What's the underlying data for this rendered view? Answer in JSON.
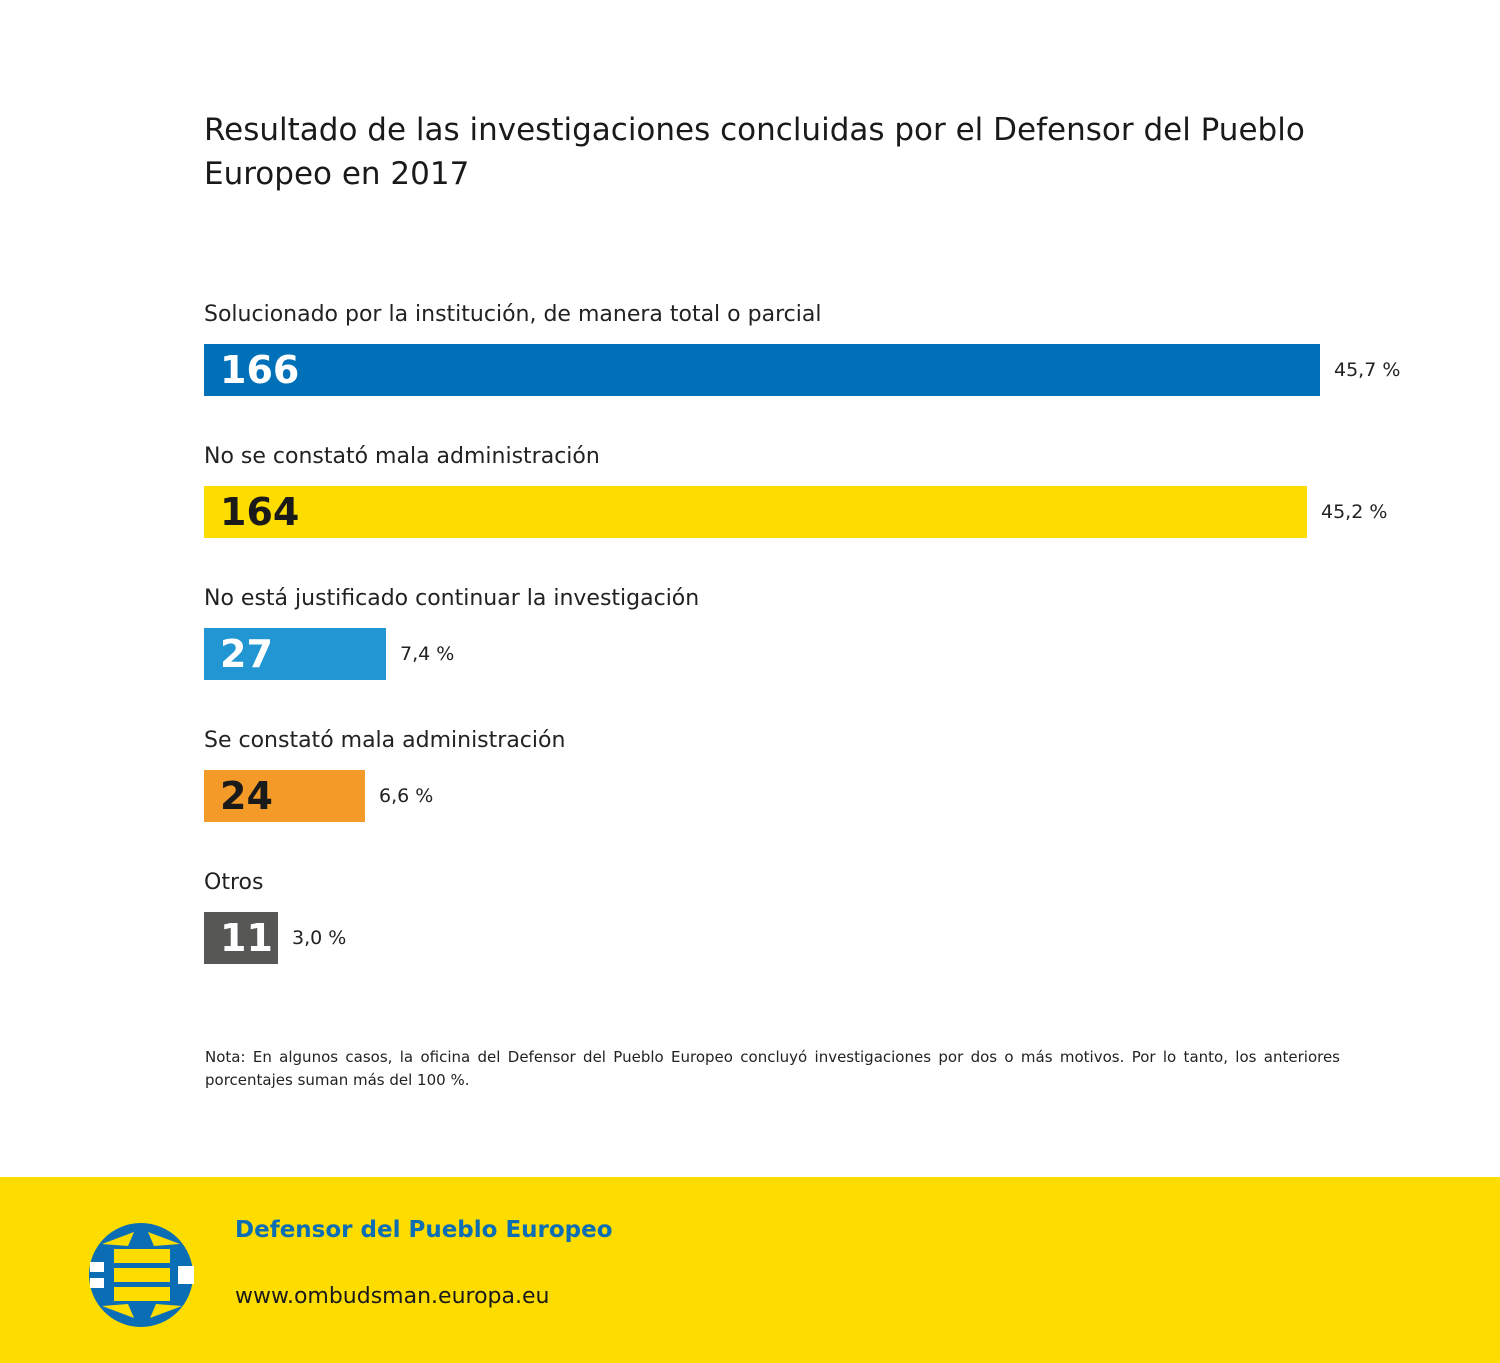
{
  "chart_data": {
    "type": "bar",
    "orientation": "horizontal",
    "title": "Resultado de las investigaciones concluidas por el Defensor del Pueblo Europeo en 2017",
    "categories": [
      "Solucionado por la institución, de manera total o parcial",
      "No se constató mala administración",
      "No está justificado continuar la investigación",
      "Se constató mala administración",
      "Otros"
    ],
    "values": [
      166,
      164,
      27,
      24,
      11
    ],
    "value_labels": [
      "166",
      "164",
      "27",
      "24",
      "11"
    ],
    "percent_labels": [
      "45,7 %",
      "45,2 %",
      "7,4 %",
      "6,6 %",
      "3,0 %"
    ],
    "colors": [
      "#0070b8",
      "#fddc00",
      "#2196d3",
      "#f39a29",
      "#575756"
    ],
    "value_text_colors": [
      "#ffffff",
      "#1a1a1a",
      "#ffffff",
      "#1a1a1a",
      "#ffffff"
    ],
    "xlim": [
      0,
      166
    ],
    "xlabel": "",
    "ylabel": ""
  },
  "note": "Nota: En algunos casos, la oficina del Defensor del Pueblo Europeo concluyó investigaciones por dos o más motivos. Por lo tanto, los anteriores porcentajes suman más del 100 %.",
  "footer": {
    "brand": "Defensor del Pueblo Europeo",
    "url": "www.ombudsman.europa.eu"
  },
  "logo": {
    "icon": "european-ombudsman-logo-icon"
  }
}
